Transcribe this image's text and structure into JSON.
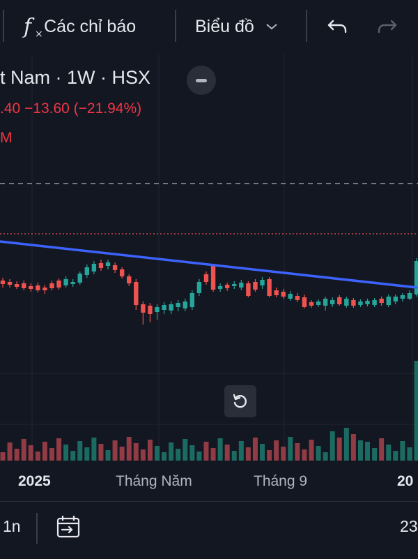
{
  "toolbar": {
    "indicators_label": "Các chỉ báo",
    "chart_type_label": "Biểu đồ"
  },
  "legend": {
    "title_visible": "t Nam · 1W · HSX",
    "change_visible": ".40  −13.60 (−21.94%)",
    "ma_visible": "M"
  },
  "xaxis": {
    "labels": [
      "2025",
      "Tháng Năm",
      "Tháng 9",
      "20"
    ]
  },
  "bottom": {
    "interval": "1n",
    "right_text": "23"
  },
  "colors": {
    "up": "#26a69a",
    "down": "#ef5350",
    "trendline": "#3d63ff",
    "background": "#131722",
    "grid": "#232632"
  },
  "icons": [
    "fx-icon",
    "chevron-down-icon",
    "undo-icon",
    "redo-icon",
    "minus-icon",
    "reset-icon",
    "goto-date-icon"
  ]
}
